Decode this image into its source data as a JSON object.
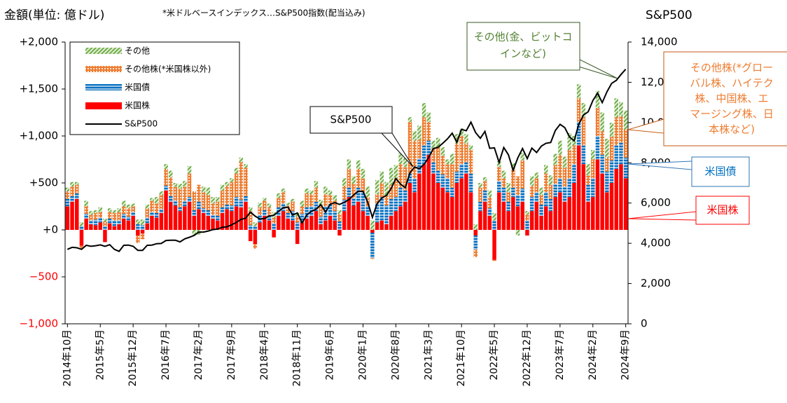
{
  "chart_data": {
    "type": "bar",
    "title": "金額(単位: 億ドル)",
    "subtitle": "*米ドルベースインデックス…S&P500指数(配当込み)",
    "y2_label": "S&P500",
    "stacked": true,
    "categories": [
      "2014年10月",
      null,
      null,
      null,
      null,
      null,
      null,
      "2015年5月",
      null,
      null,
      null,
      null,
      null,
      null,
      "2015年12月",
      null,
      null,
      null,
      null,
      null,
      null,
      "2016年7月",
      null,
      null,
      null,
      null,
      null,
      null,
      "2017年2月",
      null,
      null,
      null,
      null,
      null,
      null,
      "2017年9月",
      null,
      null,
      null,
      null,
      null,
      null,
      "2018年4月",
      null,
      null,
      null,
      null,
      null,
      null,
      "2018年11月",
      null,
      null,
      null,
      null,
      null,
      null,
      "2019年6月",
      null,
      null,
      null,
      null,
      null,
      null,
      "2020年1月",
      null,
      null,
      null,
      null,
      null,
      null,
      "2020年8月",
      null,
      null,
      null,
      null,
      null,
      null,
      "2021年3月",
      null,
      null,
      null,
      null,
      null,
      null,
      "2021年10月",
      null,
      null,
      null,
      null,
      null,
      null,
      "2022年5月",
      null,
      null,
      null,
      null,
      null,
      null,
      "2022年12月",
      null,
      null,
      null,
      null,
      null,
      null,
      "2023年7月",
      null,
      null,
      null,
      null,
      null,
      null,
      "2024年2月",
      null,
      null,
      null,
      null,
      null,
      null,
      "2024年9月"
    ],
    "series": [
      {
        "name": "米国株",
        "color": "#ff0000",
        "values": [
          250,
          300,
          330,
          -170,
          120,
          60,
          50,
          80,
          -130,
          70,
          40,
          60,
          120,
          100,
          150,
          -60,
          -40,
          70,
          150,
          130,
          180,
          420,
          300,
          260,
          200,
          250,
          300,
          150,
          220,
          180,
          150,
          120,
          100,
          180,
          220,
          200,
          250,
          240,
          300,
          -120,
          -150,
          80,
          150,
          100,
          -80,
          150,
          200,
          120,
          100,
          -150,
          80,
          120,
          150,
          200,
          60,
          100,
          150,
          100,
          -60,
          200,
          350,
          260,
          300,
          200,
          150,
          -30,
          80,
          100,
          60,
          150,
          200,
          250,
          300,
          500,
          400,
          600,
          700,
          800,
          600,
          500,
          450,
          400,
          350,
          500,
          550,
          600,
          400,
          -60,
          200,
          300,
          150,
          -320,
          400,
          300,
          200,
          350,
          250,
          300,
          -60,
          200,
          300,
          150,
          250,
          200,
          350,
          400,
          300,
          350,
          500,
          900,
          700,
          300,
          350,
          750,
          600,
          400,
          500,
          650,
          700,
          550
        ]
      },
      {
        "name": "米国債",
        "color": "#0070c0",
        "values": [
          80,
          60,
          60,
          40,
          50,
          40,
          60,
          50,
          40,
          50,
          60,
          40,
          50,
          40,
          40,
          60,
          50,
          60,
          40,
          50,
          40,
          50,
          60,
          50,
          40,
          60,
          50,
          60,
          80,
          50,
          60,
          40,
          50,
          60,
          50,
          60,
          100,
          80,
          60,
          50,
          40,
          80,
          60,
          50,
          70,
          90,
          80,
          60,
          100,
          80,
          90,
          120,
          100,
          100,
          80,
          150,
          120,
          100,
          90,
          120,
          100,
          80,
          150,
          200,
          100,
          -270,
          200,
          250,
          200,
          180,
          150,
          200,
          120,
          100,
          150,
          160,
          200,
          150,
          120,
          130,
          140,
          150,
          100,
          120,
          150,
          120,
          200,
          -150,
          100,
          120,
          80,
          100,
          120,
          150,
          100,
          100,
          120,
          140,
          100,
          150,
          100,
          120,
          150,
          130,
          140,
          150,
          160,
          200,
          200,
          250,
          200,
          180,
          200,
          250,
          200,
          220,
          240,
          250,
          230,
          220
        ]
      },
      {
        "name": "その他株(*米国株以外)",
        "color": "#ed7d31",
        "values": [
          80,
          100,
          90,
          -30,
          80,
          60,
          70,
          60,
          50,
          70,
          80,
          90,
          80,
          90,
          60,
          -80,
          -60,
          100,
          120,
          100,
          150,
          180,
          200,
          150,
          200,
          150,
          250,
          200,
          180,
          170,
          160,
          120,
          150,
          180,
          200,
          250,
          250,
          400,
          300,
          150,
          -50,
          80,
          100,
          90,
          60,
          100,
          120,
          80,
          100,
          60,
          80,
          150,
          130,
          150,
          120,
          130,
          100,
          110,
          80,
          150,
          200,
          150,
          200,
          150,
          100,
          -10,
          100,
          150,
          100,
          150,
          200,
          250,
          250,
          550,
          400,
          200,
          300,
          200,
          150,
          250,
          200,
          150,
          250,
          300,
          300,
          200,
          250,
          -80,
          150,
          100,
          120,
          -10,
          150,
          100,
          100,
          200,
          200,
          300,
          60,
          120,
          150,
          100,
          200,
          150,
          200,
          250,
          200,
          300,
          200,
          250,
          300,
          100,
          200,
          300,
          250,
          150,
          250,
          300,
          280,
          300
        ]
      },
      {
        "name": "その他",
        "color": "#70ad47",
        "values": [
          40,
          50,
          30,
          40,
          60,
          40,
          30,
          50,
          30,
          40,
          30,
          40,
          60,
          40,
          30,
          50,
          60,
          40,
          30,
          70,
          40,
          50,
          70,
          40,
          50,
          60,
          80,
          -60,
          -50,
          60,
          80,
          70,
          50,
          60,
          40,
          40,
          60,
          50,
          40,
          40,
          40,
          50,
          30,
          40,
          60,
          50,
          40,
          30,
          30,
          40,
          60,
          50,
          40,
          70,
          60,
          80,
          50,
          60,
          40,
          80,
          100,
          80,
          90,
          100,
          110,
          100,
          150,
          120,
          150,
          180,
          140,
          120,
          100,
          50,
          100,
          150,
          150,
          100,
          80,
          100,
          90,
          50,
          110,
          100,
          80,
          100,
          50,
          60,
          50,
          40,
          70,
          80,
          60,
          80,
          100,
          60,
          -60,
          80,
          40,
          100,
          60,
          80,
          90,
          100,
          120,
          150,
          120,
          180,
          100,
          150,
          150,
          120,
          100,
          180,
          200,
          200,
          150,
          200,
          150,
          200
        ]
      },
      {
        "name": "S&P500",
        "color": "#000000",
        "type": "line",
        "axis": "y2",
        "values": [
          3700,
          3800,
          3780,
          3700,
          3900,
          3850,
          3880,
          3920,
          3850,
          3930,
          3700,
          3600,
          3900,
          3910,
          3850,
          3650,
          3650,
          3900,
          3910,
          3980,
          3990,
          4140,
          4150,
          4150,
          4070,
          4220,
          4300,
          4390,
          4560,
          4560,
          4610,
          4680,
          4710,
          4800,
          4820,
          4920,
          5040,
          5190,
          5250,
          5550,
          5350,
          5210,
          5230,
          5360,
          5390,
          5590,
          5770,
          5800,
          5400,
          5510,
          5010,
          5410,
          5590,
          5690,
          5920,
          5550,
          5940,
          6020,
          5930,
          6040,
          6170,
          6400,
          6590,
          6580,
          6040,
          5290,
          5970,
          6250,
          6380,
          6730,
          7220,
          6940,
          6760,
          7500,
          7790,
          7710,
          7920,
          8270,
          8710,
          8770,
          8970,
          9190,
          9470,
          9020,
          9660,
          9590,
          10020,
          9500,
          9220,
          9560,
          8720,
          8740,
          8020,
          8760,
          8400,
          7630,
          8250,
          8710,
          8210,
          8730,
          8510,
          8830,
          8970,
          9010,
          9600,
          9910,
          9750,
          9290,
          9090,
          9920,
          10370,
          10540,
          11100,
          11460,
          10990,
          11530,
          11950,
          12100,
          12390,
          12650
        ]
      }
    ],
    "ylim": [
      -1000,
      2000
    ],
    "yticks": [
      {
        "value": -1000,
        "label": "−1,000"
      },
      {
        "value": -500,
        "label": "−500"
      },
      {
        "value": 0,
        "label": "+0"
      },
      {
        "value": 500,
        "label": "+500"
      },
      {
        "value": 1000,
        "label": "+1,000"
      },
      {
        "value": 1500,
        "label": "+1,500"
      },
      {
        "value": 2000,
        "label": "+2,000"
      }
    ],
    "y2lim": [
      0,
      14000
    ],
    "y2ticks": [
      0,
      {
        "value": 2000,
        "label": "2,000"
      },
      {
        "value": 4000,
        "label": "4,000"
      },
      {
        "value": 6000,
        "label": "6,000"
      },
      {
        "value": 8000,
        "label": "8,000"
      },
      {
        "value": 10000,
        "label": "10,000"
      },
      {
        "value": 12000,
        "label": "12,000"
      },
      {
        "value": 14000,
        "label": "14,000"
      }
    ],
    "legend": "upper left",
    "annotations": [
      {
        "lines": [
          "S&P500"
        ]
      },
      {
        "lines": [
          "その他(金、ビットコ",
          "インなど)"
        ]
      },
      {
        "lines": [
          "その他株(*グロー",
          "バル株、ハイテク",
          "株、中国株、エ",
          "マージング株、日",
          "本株など)"
        ]
      },
      {
        "lines": [
          "米国債"
        ]
      },
      {
        "lines": [
          "米国株"
        ]
      }
    ]
  }
}
